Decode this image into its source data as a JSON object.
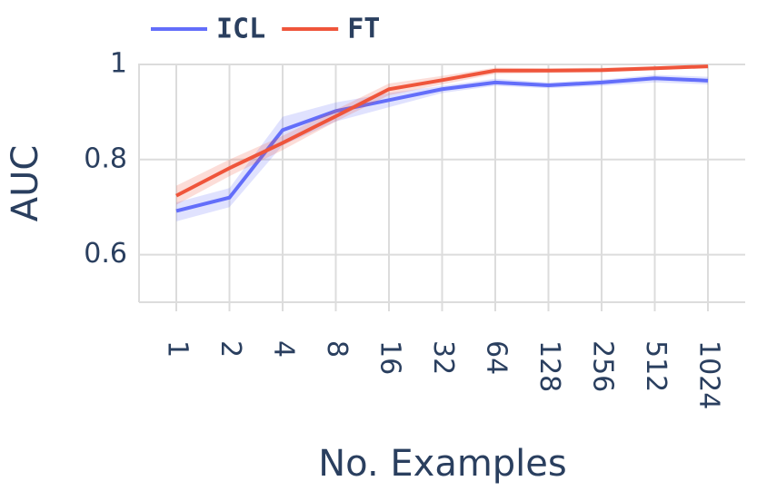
{
  "chart_data": {
    "type": "line",
    "categories": [
      "1",
      "2",
      "4",
      "8",
      "16",
      "32",
      "64",
      "128",
      "256",
      "512",
      "1024"
    ],
    "xlabel": "No. Examples",
    "ylabel": "AUC",
    "ylim": [
      0.5,
      1.0
    ],
    "yticks": [
      0.6,
      0.8,
      1
    ],
    "grid": true,
    "legend": "top-left",
    "series": [
      {
        "name": "ICL",
        "color": "#636efa",
        "values": [
          0.692,
          0.72,
          0.862,
          0.902,
          0.925,
          0.948,
          0.962,
          0.956,
          0.962,
          0.971,
          0.966
        ],
        "lower": [
          0.67,
          0.7,
          0.83,
          0.88,
          0.91,
          0.94,
          0.955,
          0.95,
          0.955,
          0.962,
          0.958
        ],
        "upper": [
          0.71,
          0.74,
          0.89,
          0.92,
          0.94,
          0.955,
          0.97,
          0.962,
          0.968,
          0.978,
          0.974
        ]
      },
      {
        "name": "FT",
        "color": "#ef553b",
        "values": [
          0.724,
          0.782,
          0.835,
          0.891,
          0.948,
          0.967,
          0.987,
          0.987,
          0.988,
          0.992,
          0.996
        ],
        "lower": [
          0.705,
          0.765,
          0.82,
          0.88,
          0.935,
          0.958,
          0.98,
          0.982,
          0.983,
          0.988,
          0.992
        ],
        "upper": [
          0.745,
          0.8,
          0.85,
          0.905,
          0.96,
          0.976,
          0.993,
          0.992,
          0.993,
          0.996,
          0.999
        ]
      }
    ]
  }
}
